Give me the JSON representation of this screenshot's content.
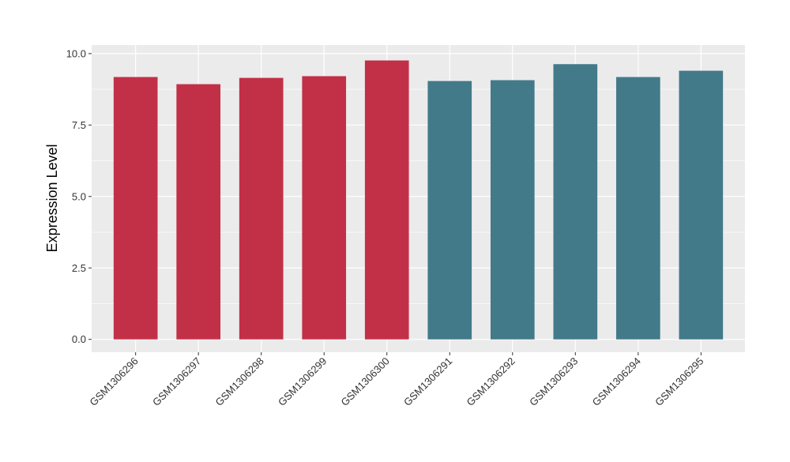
{
  "chart_data": {
    "type": "bar",
    "ylabel": "Expression Level",
    "xlabel": "",
    "title": "",
    "ylim": [
      -0.45,
      10.3
    ],
    "yticks": [
      0.0,
      2.5,
      5.0,
      7.5,
      10.0
    ],
    "ytick_labels": [
      "0.0",
      "2.5",
      "5.0",
      "7.5",
      "10.0"
    ],
    "grid": true,
    "categories": [
      "GSM1306296",
      "GSM1306297",
      "GSM1306298",
      "GSM1306299",
      "GSM1306300",
      "GSM1306291",
      "GSM1306292",
      "GSM1306293",
      "GSM1306294",
      "GSM1306295"
    ],
    "values": [
      9.18,
      8.93,
      9.15,
      9.21,
      9.76,
      9.04,
      9.07,
      9.63,
      9.18,
      9.4
    ],
    "bar_colors": [
      "#c23047",
      "#c23047",
      "#c23047",
      "#c23047",
      "#c23047",
      "#427a8a",
      "#427a8a",
      "#427a8a",
      "#427a8a",
      "#427a8a"
    ],
    "panel_background": "#ebebeb",
    "grid_color": "#ffffff"
  }
}
